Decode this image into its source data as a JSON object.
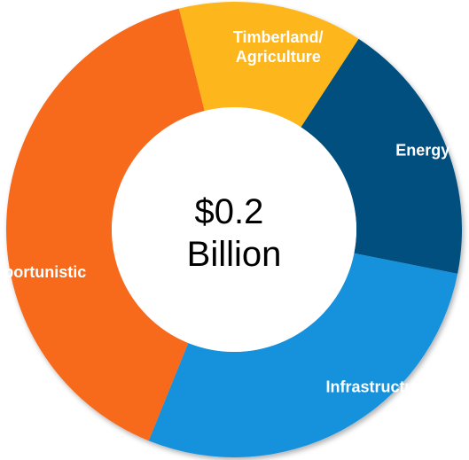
{
  "chart_data": {
    "type": "pie",
    "donut": true,
    "center_label": [
      "$0.2",
      "Billion"
    ],
    "start_angle_deg": -14,
    "categories": [
      "Timberland/ Agriculture",
      "Energy",
      "Infrastructure",
      "Opportunistic"
    ],
    "category_label_lines": [
      [
        "Timberland/",
        "Agriculture"
      ],
      [
        "Energy"
      ],
      [
        "Infrastructure"
      ],
      [
        "Opportunistic"
      ]
    ],
    "values": [
      13.1,
      18.9,
      28.0,
      40.0
    ],
    "colors": [
      "#FDB61A",
      "#02507E",
      "#1592DD",
      "#F76B1D"
    ]
  }
}
